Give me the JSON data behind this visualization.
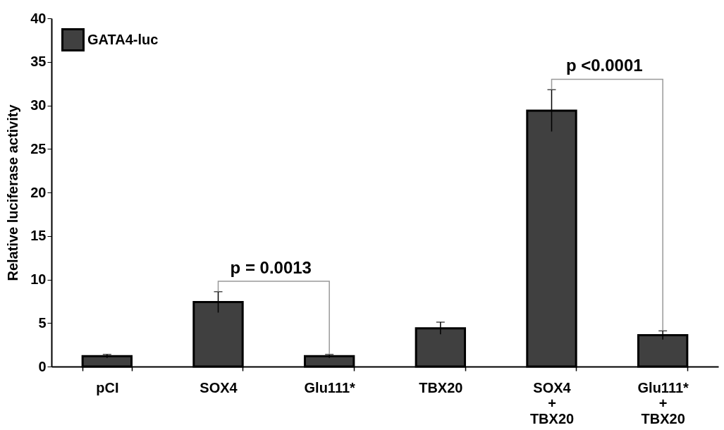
{
  "chart_data": {
    "type": "bar",
    "ylabel": "Relative luciferase activity",
    "categories": [
      "pCI",
      "SOX4",
      "Glu111*",
      "TBX20",
      "SOX4\n+\nTBX20",
      "Glu111*\n+\nTBX20"
    ],
    "series": [
      {
        "name": "GATA4-luc",
        "color": "#404040",
        "values": [
          1.2,
          7.4,
          1.2,
          4.4,
          29.4,
          3.6
        ],
        "errors": [
          0.2,
          1.2,
          0.2,
          0.7,
          2.4,
          0.5
        ]
      }
    ],
    "ylim": [
      0,
      40
    ],
    "yticks": [
      0,
      5,
      10,
      15,
      20,
      25,
      30,
      35,
      40
    ],
    "grid": false,
    "legend": "top left",
    "annotations": [
      {
        "text": "p = 0.0013",
        "x": "SOX4",
        "y": 8.6
      },
      {
        "text": "p <0.0001",
        "x": "SOX4\n+\nTBX20",
        "y": 31.8
      }
    ]
  }
}
